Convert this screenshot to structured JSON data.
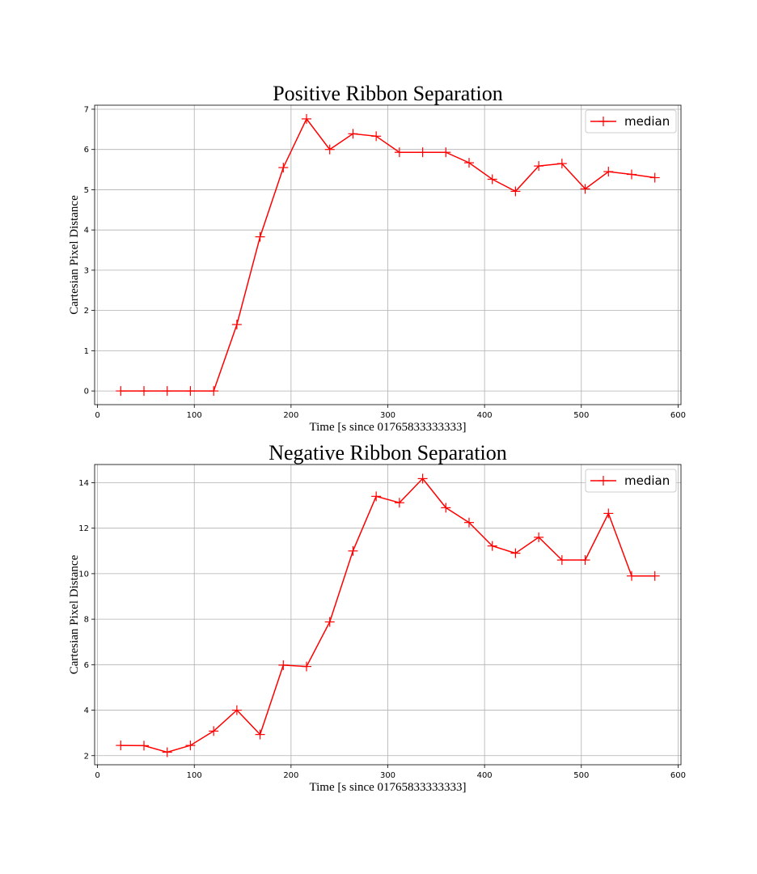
{
  "chart_data": [
    {
      "type": "line",
      "title": "Positive Ribbon Separation",
      "xlabel": "Time [s since 01765833333333]",
      "ylabel": "Cartesian Pixel Distance",
      "xlim": [
        -3,
        603
      ],
      "ylim": [
        -0.34,
        7.1
      ],
      "xticks": [
        0,
        100,
        200,
        300,
        400,
        500,
        600
      ],
      "yticks": [
        0,
        1,
        2,
        3,
        4,
        5,
        6,
        7
      ],
      "grid": true,
      "legend": "top-right",
      "series": [
        {
          "name": "median",
          "color": "#ff0000",
          "marker": "+",
          "x": [
            24,
            48,
            72,
            96,
            120,
            144,
            168,
            192,
            216,
            240,
            264,
            288,
            312,
            336,
            360,
            384,
            408,
            432,
            456,
            480,
            504,
            528,
            552,
            576
          ],
          "y": [
            0,
            0,
            0,
            0,
            0,
            1.65,
            3.83,
            5.55,
            6.76,
            6.0,
            6.39,
            6.33,
            5.93,
            5.93,
            5.93,
            5.67,
            5.26,
            4.96,
            5.59,
            5.65,
            5.02,
            5.45,
            5.38,
            5.3
          ]
        }
      ]
    },
    {
      "type": "line",
      "title": "Negative Ribbon Separation",
      "xlabel": "Time [s since 01765833333333]",
      "ylabel": "Cartesian Pixel Distance",
      "xlim": [
        -3,
        603
      ],
      "ylim": [
        1.6,
        14.8
      ],
      "xticks": [
        0,
        100,
        200,
        300,
        400,
        500,
        600
      ],
      "yticks": [
        2,
        4,
        6,
        8,
        10,
        12,
        14
      ],
      "grid": true,
      "legend": "top-right",
      "series": [
        {
          "name": "median",
          "color": "#ff0000",
          "marker": "+",
          "x": [
            24,
            48,
            72,
            96,
            120,
            144,
            168,
            192,
            216,
            240,
            264,
            288,
            312,
            336,
            360,
            384,
            408,
            432,
            456,
            480,
            504,
            528,
            552,
            576
          ],
          "y": [
            2.45,
            2.44,
            2.15,
            2.45,
            3.08,
            4.0,
            2.93,
            5.98,
            5.92,
            7.88,
            11.0,
            13.4,
            13.12,
            14.18,
            12.9,
            12.25,
            11.22,
            10.9,
            11.6,
            10.6,
            10.6,
            12.65,
            9.9,
            9.9
          ]
        }
      ]
    }
  ]
}
